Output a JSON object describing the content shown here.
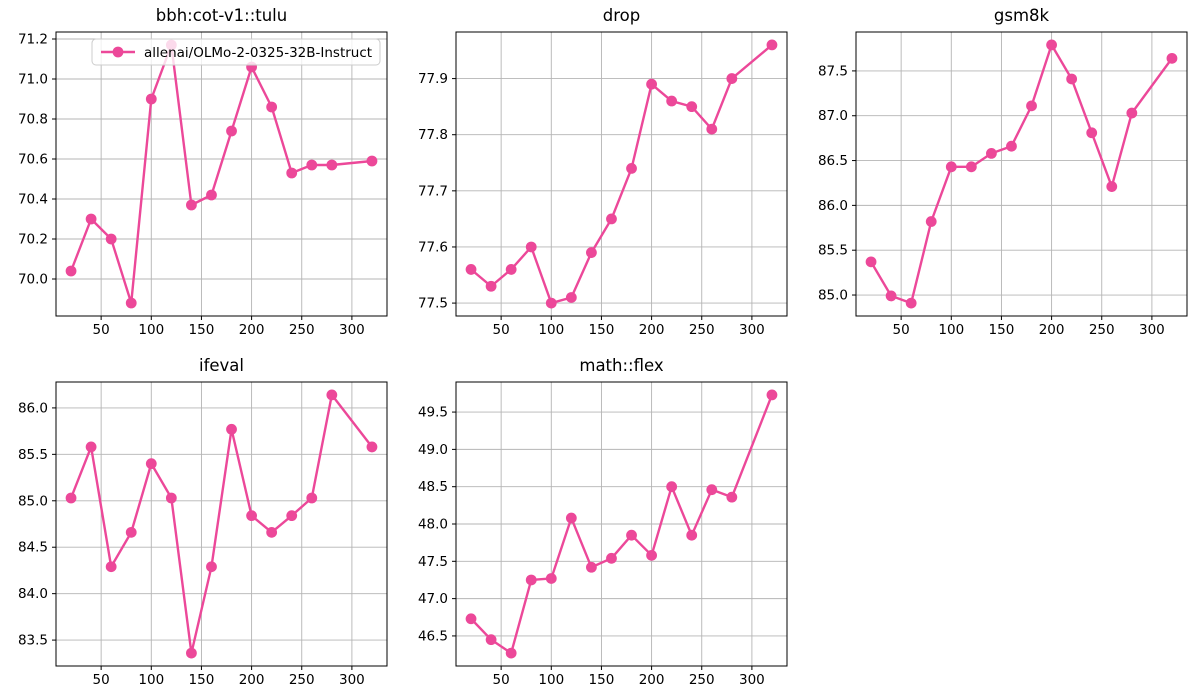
{
  "figure": {
    "background": "#ffffff",
    "accent_color": "#ec4899",
    "grid_color": "#b4b4b4",
    "frame_color": "#000000",
    "text_color": "#000000",
    "legend": {
      "label": "allenai/OLMo-2-0325-32B-Instruct",
      "border_color": "#cccccc",
      "background": "rgba(255,255,255,0.8)"
    }
  },
  "chart_data": [
    {
      "type": "line",
      "title": "bbh:cot-v1::tulu",
      "xlabel": "",
      "ylabel": "",
      "grid": true,
      "legend": {
        "visible": true,
        "label": "allenai/OLMo-2-0325-32B-Instruct",
        "position": "upper left"
      },
      "xlim": [
        5,
        335
      ],
      "ylim": [
        69.815,
        71.235
      ],
      "xticks": [
        "50",
        "100",
        "150",
        "200",
        "250",
        "300"
      ],
      "yticks": [
        "70.0",
        "70.2",
        "70.4",
        "70.6",
        "70.8",
        "71.0",
        "71.2"
      ],
      "series": [
        {
          "name": "allenai/OLMo-2-0325-32B-Instruct",
          "x": [
            20,
            40,
            60,
            80,
            100,
            120,
            140,
            160,
            180,
            200,
            220,
            240,
            260,
            280,
            320
          ],
          "y": [
            70.04,
            70.3,
            70.2,
            69.88,
            70.9,
            71.17,
            70.37,
            70.42,
            70.74,
            71.06,
            70.86,
            70.53,
            70.57,
            70.57,
            70.59
          ]
        }
      ]
    },
    {
      "type": "line",
      "title": "drop",
      "xlabel": "",
      "ylabel": "",
      "grid": true,
      "legend": {
        "visible": false
      },
      "xlim": [
        5,
        335
      ],
      "ylim": [
        77.477,
        77.983
      ],
      "xticks": [
        "50",
        "100",
        "150",
        "200",
        "250",
        "300"
      ],
      "yticks": [
        "77.5",
        "77.6",
        "77.7",
        "77.8",
        "77.9"
      ],
      "series": [
        {
          "name": "allenai/OLMo-2-0325-32B-Instruct",
          "x": [
            20,
            40,
            60,
            80,
            100,
            120,
            140,
            160,
            180,
            200,
            220,
            240,
            260,
            280,
            320
          ],
          "y": [
            77.56,
            77.53,
            77.56,
            77.6,
            77.5,
            77.51,
            77.59,
            77.65,
            77.74,
            77.89,
            77.86,
            77.85,
            77.81,
            77.9,
            77.96
          ]
        }
      ]
    },
    {
      "type": "line",
      "title": "gsm8k",
      "xlabel": "",
      "ylabel": "",
      "grid": true,
      "legend": {
        "visible": false
      },
      "xlim": [
        5,
        335
      ],
      "ylim": [
        84.766,
        87.934
      ],
      "xticks": [
        "50",
        "100",
        "150",
        "200",
        "250",
        "300"
      ],
      "yticks": [
        "85.0",
        "85.5",
        "86.0",
        "86.5",
        "87.0",
        "87.5"
      ],
      "series": [
        {
          "name": "allenai/OLMo-2-0325-32B-Instruct",
          "x": [
            20,
            40,
            60,
            80,
            100,
            120,
            140,
            160,
            180,
            200,
            220,
            240,
            260,
            280,
            320
          ],
          "y": [
            85.37,
            84.99,
            84.91,
            85.82,
            86.43,
            86.43,
            86.58,
            86.66,
            87.11,
            87.79,
            87.41,
            86.81,
            86.21,
            87.03,
            87.64
          ]
        }
      ]
    },
    {
      "type": "line",
      "title": "ifeval",
      "xlabel": "",
      "ylabel": "",
      "grid": true,
      "legend": {
        "visible": false
      },
      "xlim": [
        5,
        335
      ],
      "ylim": [
        83.221,
        86.279
      ],
      "xticks": [
        "50",
        "100",
        "150",
        "200",
        "250",
        "300"
      ],
      "yticks": [
        "83.5",
        "84.0",
        "84.5",
        "85.0",
        "85.5",
        "86.0"
      ],
      "series": [
        {
          "name": "allenai/OLMo-2-0325-32B-Instruct",
          "x": [
            20,
            40,
            60,
            80,
            100,
            120,
            140,
            160,
            180,
            200,
            220,
            240,
            260,
            280,
            320
          ],
          "y": [
            85.03,
            85.58,
            84.29,
            84.66,
            85.4,
            85.03,
            83.36,
            84.29,
            85.77,
            84.84,
            84.66,
            84.84,
            85.03,
            86.14,
            85.58
          ]
        }
      ]
    },
    {
      "type": "line",
      "title": "math::flex",
      "xlabel": "",
      "ylabel": "",
      "grid": true,
      "legend": {
        "visible": false
      },
      "xlim": [
        5,
        335
      ],
      "ylim": [
        46.097,
        49.903
      ],
      "xticks": [
        "50",
        "100",
        "150",
        "200",
        "250",
        "300"
      ],
      "yticks": [
        "46.5",
        "47.0",
        "47.5",
        "48.0",
        "48.5",
        "49.0",
        "49.5"
      ],
      "series": [
        {
          "name": "allenai/OLMo-2-0325-32B-Instruct",
          "x": [
            20,
            40,
            60,
            80,
            100,
            120,
            140,
            160,
            180,
            200,
            220,
            240,
            260,
            280,
            320
          ],
          "y": [
            46.73,
            46.45,
            46.27,
            47.25,
            47.27,
            48.08,
            47.42,
            47.54,
            47.85,
            47.58,
            48.5,
            47.85,
            48.46,
            48.36,
            49.73
          ]
        }
      ]
    }
  ]
}
